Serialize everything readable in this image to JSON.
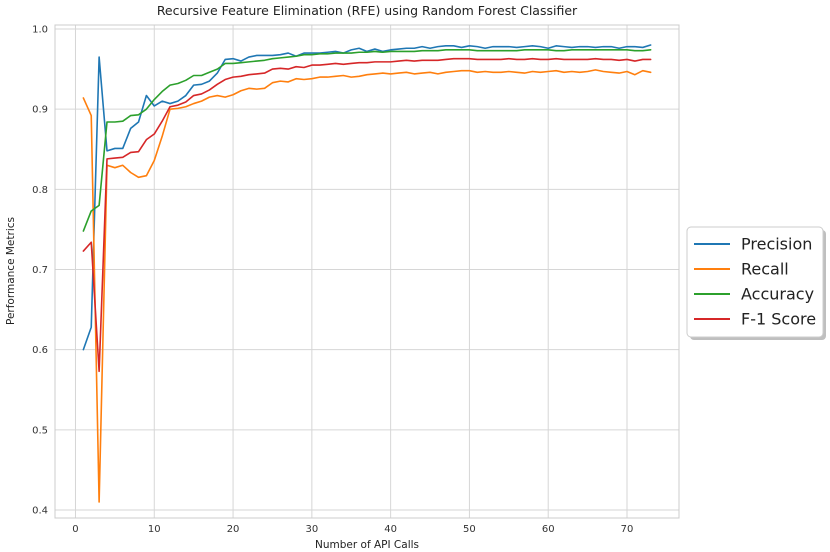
{
  "chart_data": {
    "type": "line",
    "title": "Recursive Feature Elimination (RFE) using Random Forest Classifier",
    "xlabel": "Number of API Calls",
    "ylabel": "Performance Metrics",
    "xlim": [
      -2.6,
      76.6
    ],
    "ylim": [
      0.39,
      1.005
    ],
    "xticks": [
      0,
      10,
      20,
      30,
      40,
      50,
      60,
      70
    ],
    "yticks": [
      0.4,
      0.5,
      0.6,
      0.7,
      0.8,
      0.9,
      1.0
    ],
    "xtick_labels": [
      "0",
      "10",
      "20",
      "30",
      "40",
      "50",
      "60",
      "70"
    ],
    "ytick_labels": [
      "0.4",
      "0.5",
      "0.6",
      "0.7",
      "0.8",
      "0.9",
      "1.0"
    ],
    "grid": true,
    "legend_position": "outside-right",
    "x": [
      1,
      2,
      3,
      4,
      5,
      6,
      7,
      8,
      9,
      10,
      11,
      12,
      13,
      14,
      15,
      16,
      17,
      18,
      19,
      20,
      21,
      22,
      23,
      24,
      25,
      26,
      27,
      28,
      29,
      30,
      31,
      32,
      33,
      34,
      35,
      36,
      37,
      38,
      39,
      40,
      41,
      42,
      43,
      44,
      45,
      46,
      47,
      48,
      49,
      50,
      51,
      52,
      53,
      54,
      55,
      56,
      57,
      58,
      59,
      60,
      61,
      62,
      63,
      64,
      65,
      66,
      67,
      68,
      69,
      70,
      71,
      72,
      73
    ],
    "series": [
      {
        "name": "Precision",
        "color": "#1f77b4",
        "values": [
          0.6,
          0.628,
          0.965,
          0.848,
          0.851,
          0.851,
          0.876,
          0.884,
          0.917,
          0.904,
          0.91,
          0.907,
          0.91,
          0.917,
          0.93,
          0.931,
          0.935,
          0.945,
          0.962,
          0.963,
          0.96,
          0.965,
          0.967,
          0.967,
          0.967,
          0.968,
          0.97,
          0.966,
          0.97,
          0.97,
          0.97,
          0.971,
          0.972,
          0.97,
          0.974,
          0.976,
          0.972,
          0.975,
          0.972,
          0.974,
          0.975,
          0.976,
          0.976,
          0.978,
          0.976,
          0.978,
          0.979,
          0.979,
          0.977,
          0.979,
          0.978,
          0.976,
          0.978,
          0.978,
          0.978,
          0.977,
          0.978,
          0.979,
          0.978,
          0.976,
          0.979,
          0.978,
          0.977,
          0.978,
          0.978,
          0.977,
          0.978,
          0.978,
          0.976,
          0.978,
          0.978,
          0.977,
          0.98
        ]
      },
      {
        "name": "Recall",
        "color": "#ff7f0e",
        "values": [
          0.914,
          0.892,
          0.41,
          0.83,
          0.827,
          0.83,
          0.821,
          0.815,
          0.817,
          0.836,
          0.866,
          0.9,
          0.901,
          0.903,
          0.907,
          0.91,
          0.915,
          0.917,
          0.915,
          0.918,
          0.923,
          0.926,
          0.925,
          0.926,
          0.933,
          0.935,
          0.934,
          0.938,
          0.937,
          0.938,
          0.94,
          0.94,
          0.941,
          0.942,
          0.94,
          0.941,
          0.943,
          0.944,
          0.945,
          0.944,
          0.945,
          0.946,
          0.944,
          0.945,
          0.946,
          0.944,
          0.946,
          0.947,
          0.948,
          0.948,
          0.946,
          0.947,
          0.946,
          0.946,
          0.947,
          0.946,
          0.945,
          0.947,
          0.946,
          0.947,
          0.948,
          0.946,
          0.947,
          0.946,
          0.947,
          0.949,
          0.947,
          0.946,
          0.945,
          0.947,
          0.943,
          0.948,
          0.946
        ]
      },
      {
        "name": "Accuracy",
        "color": "#2ca02c",
        "values": [
          0.748,
          0.773,
          0.78,
          0.884,
          0.884,
          0.885,
          0.892,
          0.893,
          0.9,
          0.912,
          0.922,
          0.93,
          0.932,
          0.936,
          0.942,
          0.942,
          0.946,
          0.95,
          0.957,
          0.957,
          0.958,
          0.959,
          0.96,
          0.961,
          0.963,
          0.964,
          0.965,
          0.966,
          0.968,
          0.968,
          0.969,
          0.969,
          0.97,
          0.97,
          0.97,
          0.971,
          0.971,
          0.972,
          0.971,
          0.972,
          0.972,
          0.972,
          0.972,
          0.973,
          0.973,
          0.973,
          0.974,
          0.974,
          0.974,
          0.974,
          0.973,
          0.973,
          0.973,
          0.973,
          0.973,
          0.973,
          0.974,
          0.974,
          0.974,
          0.974,
          0.973,
          0.973,
          0.974,
          0.974,
          0.974,
          0.974,
          0.974,
          0.974,
          0.974,
          0.974,
          0.973,
          0.973,
          0.974
        ]
      },
      {
        "name": "F-1 Score",
        "color": "#d62728",
        "values": [
          0.723,
          0.734,
          0.573,
          0.838,
          0.839,
          0.84,
          0.846,
          0.847,
          0.862,
          0.869,
          0.885,
          0.903,
          0.905,
          0.909,
          0.917,
          0.919,
          0.924,
          0.931,
          0.937,
          0.94,
          0.941,
          0.943,
          0.944,
          0.945,
          0.95,
          0.951,
          0.95,
          0.953,
          0.952,
          0.955,
          0.955,
          0.956,
          0.957,
          0.956,
          0.957,
          0.958,
          0.958,
          0.959,
          0.959,
          0.959,
          0.96,
          0.961,
          0.96,
          0.961,
          0.961,
          0.961,
          0.962,
          0.963,
          0.963,
          0.963,
          0.962,
          0.962,
          0.962,
          0.962,
          0.963,
          0.962,
          0.962,
          0.963,
          0.962,
          0.962,
          0.963,
          0.962,
          0.962,
          0.962,
          0.962,
          0.963,
          0.962,
          0.962,
          0.961,
          0.962,
          0.96,
          0.962,
          0.962
        ]
      }
    ]
  }
}
